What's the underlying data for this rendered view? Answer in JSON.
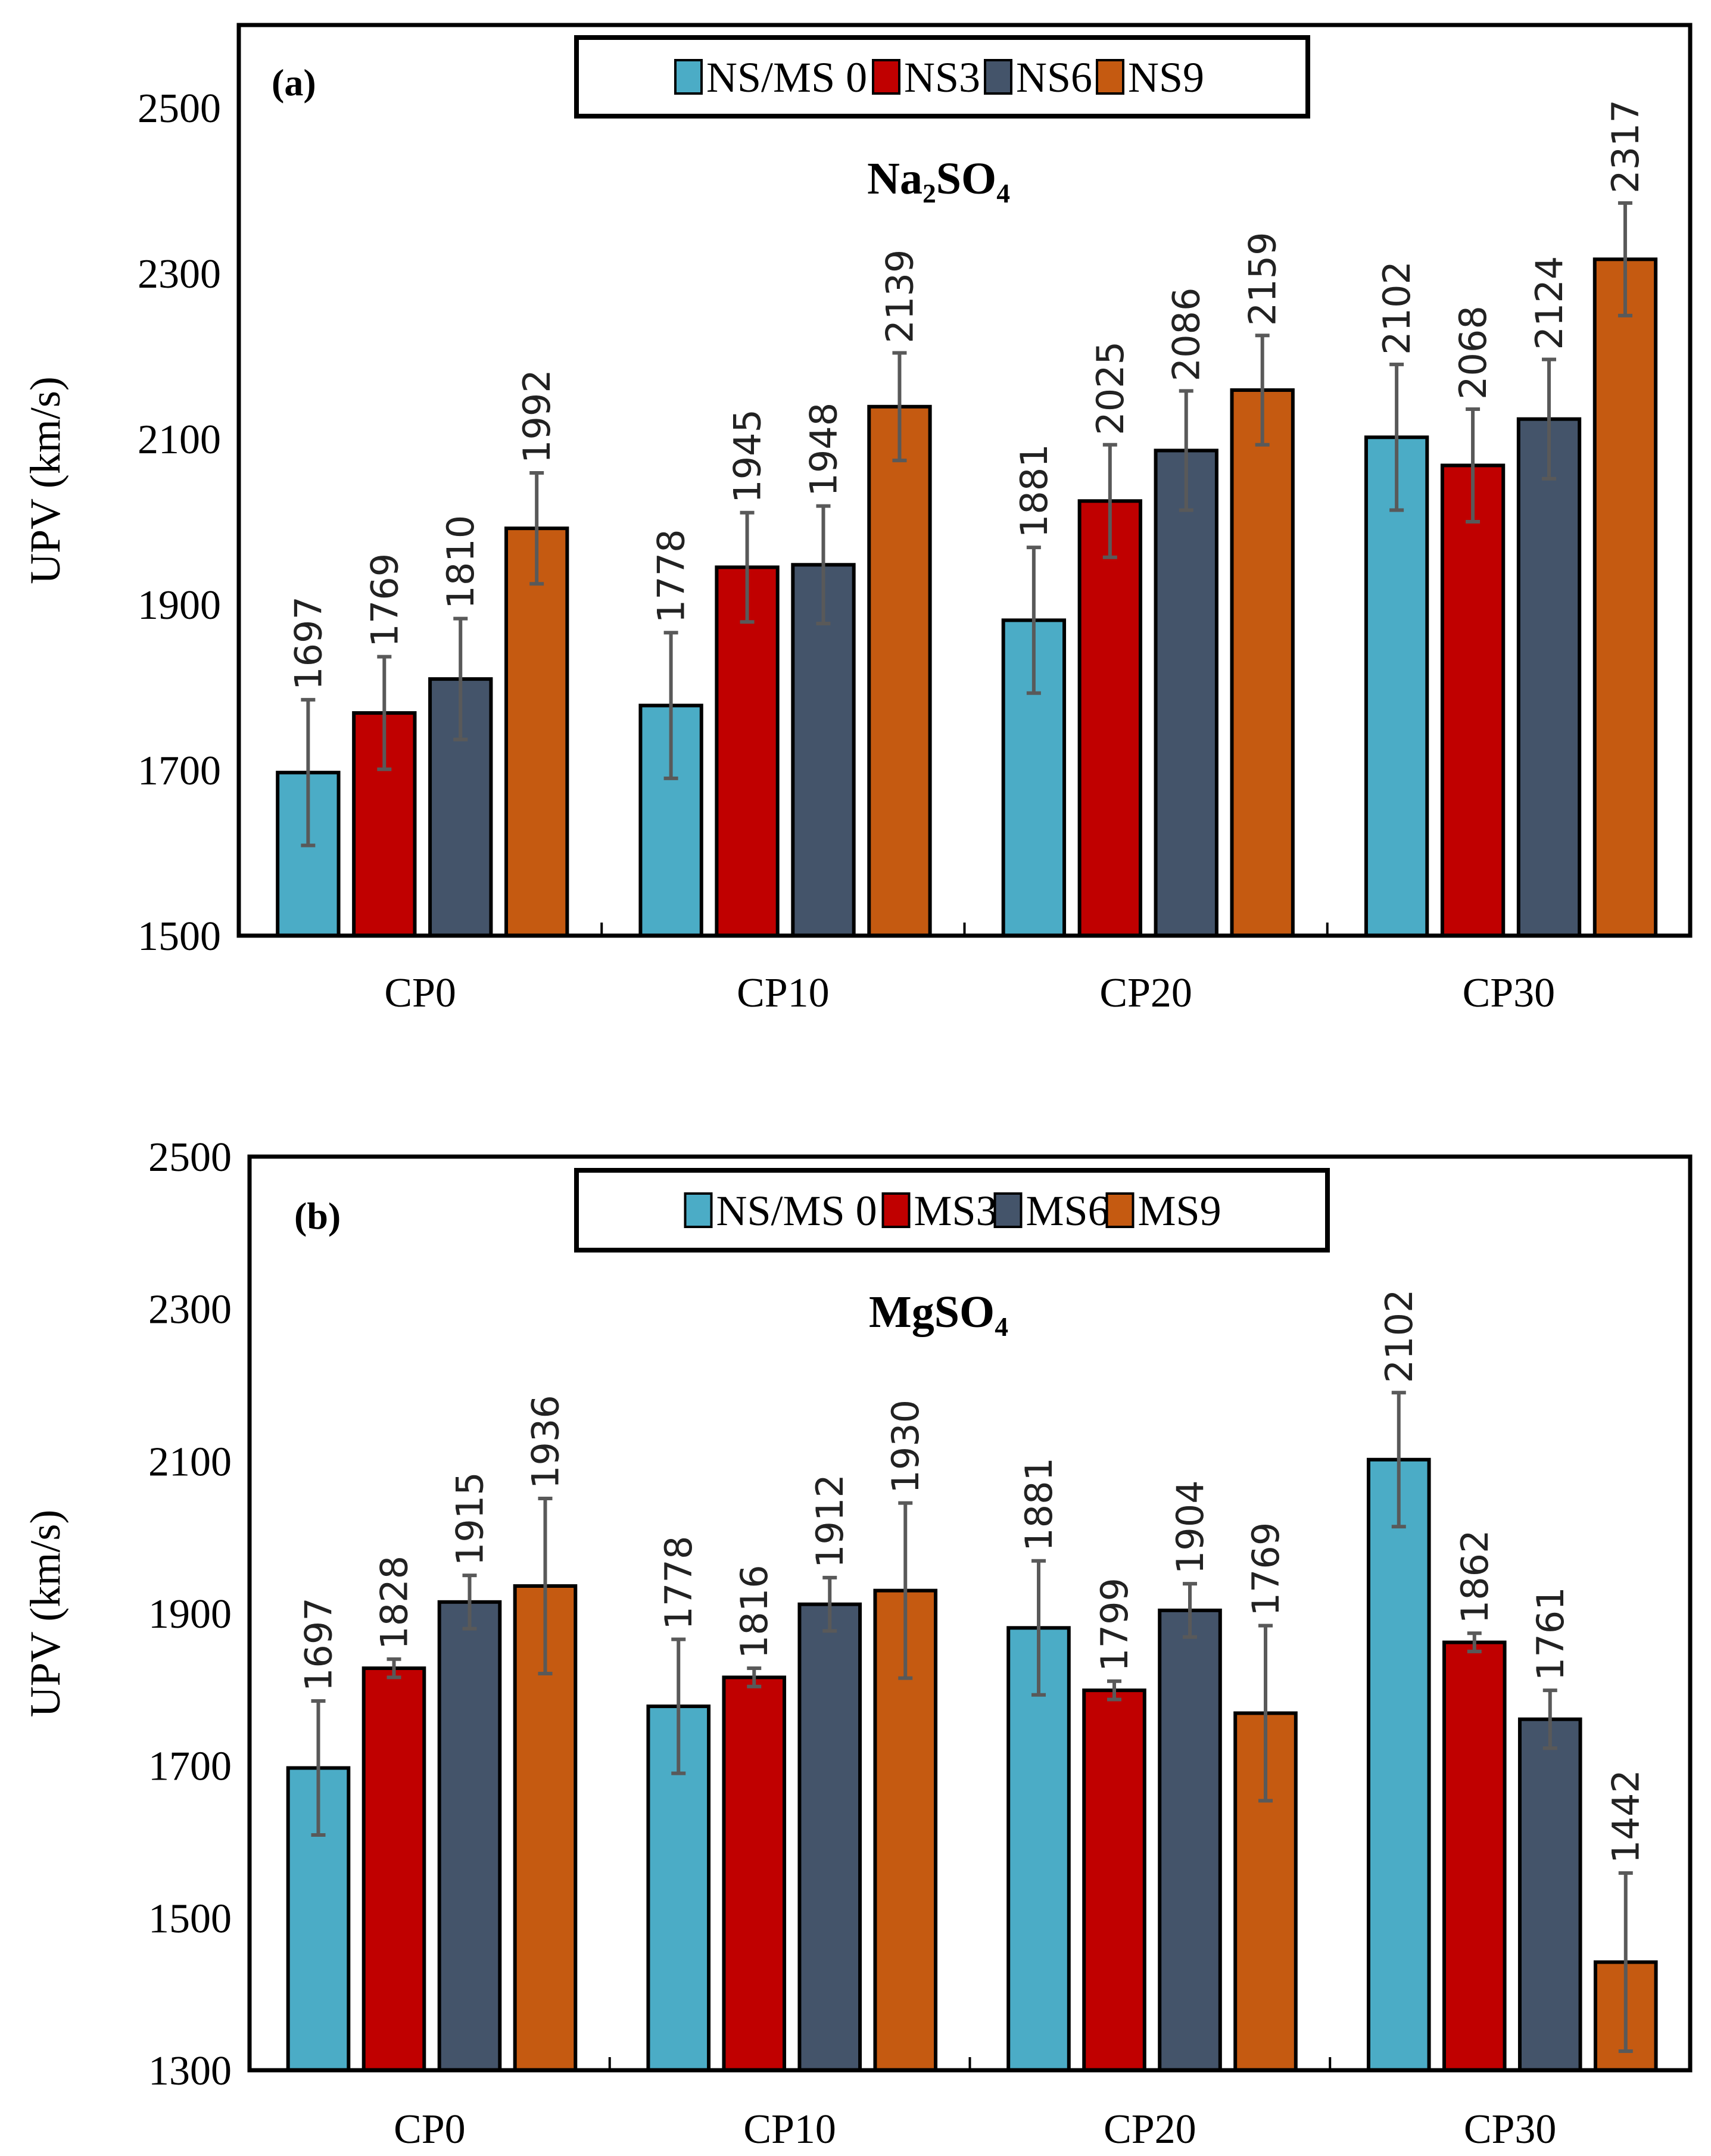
{
  "chart_data": [
    {
      "type": "bar",
      "panel_label": "(a)",
      "title": "Na₂SO₄",
      "xlabel": "",
      "ylabel": "UPV (km/s)",
      "ylim": [
        1500,
        2600
      ],
      "yticks": [
        1500,
        1700,
        1900,
        2100,
        2300,
        2500
      ],
      "grid": false,
      "legend_position": "top-center",
      "categories": [
        "CP0",
        "CP10",
        "CP20",
        "CP30"
      ],
      "series": [
        {
          "name": "NS/MS 0",
          "color": "#4BACC6",
          "values": [
            1697,
            1778,
            1881,
            2102
          ],
          "errors": [
            88,
            88,
            88,
            88
          ]
        },
        {
          "name": "NS3",
          "color": "#C00000",
          "values": [
            1769,
            1945,
            2025,
            2068
          ],
          "errors": [
            68,
            66,
            68,
            68
          ]
        },
        {
          "name": "NS6",
          "color": "#44546A",
          "values": [
            1810,
            1948,
            2086,
            2124
          ],
          "errors": [
            73,
            71,
            72,
            72
          ]
        },
        {
          "name": "NS9",
          "color": "#C55A11",
          "values": [
            1992,
            2139,
            2159,
            2317
          ],
          "errors": [
            67,
            65,
            66,
            68
          ]
        }
      ]
    },
    {
      "type": "bar",
      "panel_label": "(b)",
      "title": "MgSO₄",
      "xlabel": "",
      "ylabel": "UPV (km/s)",
      "ylim": [
        1300,
        2500
      ],
      "yticks": [
        1300,
        1500,
        1700,
        1900,
        2100,
        2300,
        2500
      ],
      "grid": false,
      "legend_position": "top-center",
      "categories": [
        "CP0",
        "CP10",
        "CP20",
        "CP30"
      ],
      "series": [
        {
          "name": "NS/MS 0",
          "color": "#4BACC6",
          "values": [
            1697,
            1778,
            1881,
            2102
          ],
          "errors": [
            88,
            88,
            88,
            88
          ]
        },
        {
          "name": "MS3",
          "color": "#C00000",
          "values": [
            1828,
            1816,
            1799,
            1862
          ],
          "errors": [
            12,
            12,
            12,
            12
          ]
        },
        {
          "name": "MS6",
          "color": "#44546A",
          "values": [
            1915,
            1912,
            1904,
            1761
          ],
          "errors": [
            35,
            35,
            35,
            38
          ]
        },
        {
          "name": "MS9",
          "color": "#C55A11",
          "values": [
            1936,
            1930,
            1769,
            1442
          ],
          "errors": [
            115,
            115,
            115,
            117
          ]
        }
      ]
    }
  ]
}
